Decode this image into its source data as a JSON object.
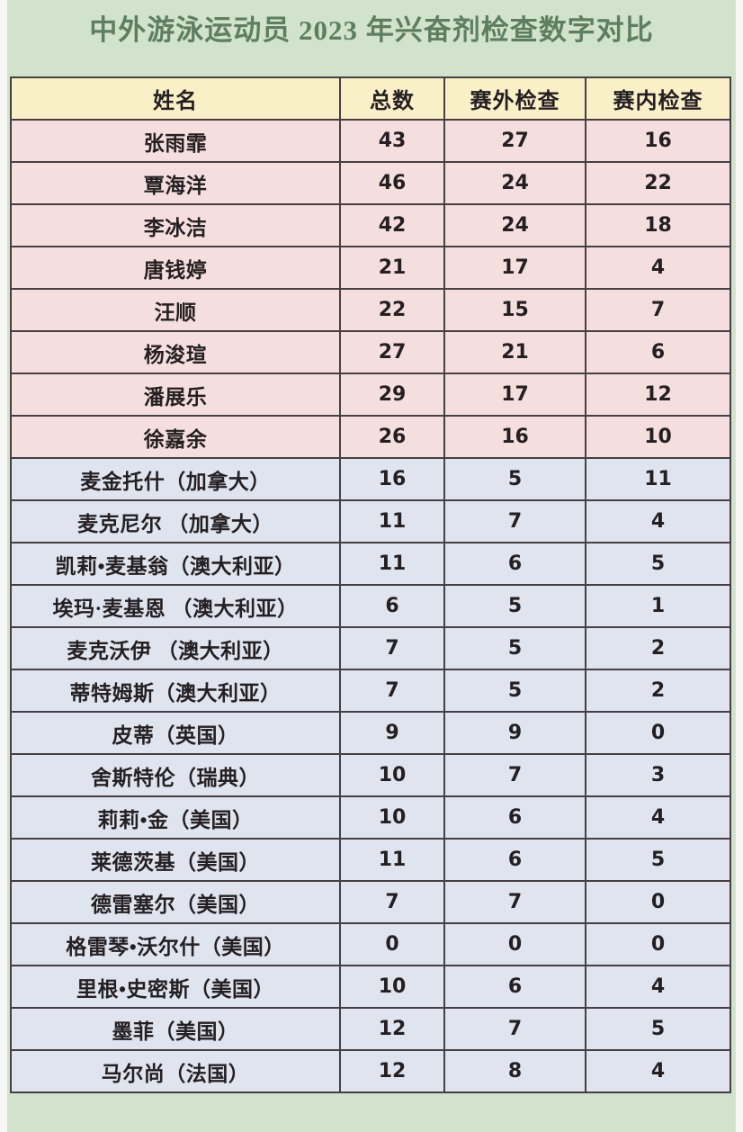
{
  "page_title": "中外游泳运动员 2023 年兴奋剂检查数字对比",
  "colors": {
    "outer_bg": "#f7f7f5",
    "panel_green": "#d2e3cd",
    "title_color": "#5e7e60",
    "header_bg": "#faf0c7",
    "chinese_row_bg": "#f5dede",
    "foreign_row_bg": "#dfe4ee",
    "border_color": "#463f43",
    "text_color": "#241f22"
  },
  "chart_data": {
    "type": "table",
    "title": "中外游泳运动员 2023 年兴奋剂检查数字对比",
    "columns": [
      "姓名",
      "总数",
      "赛外检查",
      "赛内检查"
    ],
    "chinese_row_count": 8,
    "rows": [
      [
        "张雨霏",
        43,
        27,
        16
      ],
      [
        "覃海洋",
        46,
        24,
        22
      ],
      [
        "李冰洁",
        42,
        24,
        18
      ],
      [
        "唐钱婷",
        21,
        17,
        4
      ],
      [
        "汪顺",
        22,
        15,
        7
      ],
      [
        "杨浚瑄",
        27,
        21,
        6
      ],
      [
        "潘展乐",
        29,
        17,
        12
      ],
      [
        "徐嘉余",
        26,
        16,
        10
      ],
      [
        "麦金托什（加拿大）",
        16,
        5,
        11
      ],
      [
        "麦克尼尔 （加拿大）",
        11,
        7,
        4
      ],
      [
        "凯莉•麦基翁（澳大利亚）",
        11,
        6,
        5
      ],
      [
        "埃玛·麦基恩 （澳大利亚）",
        6,
        5,
        1
      ],
      [
        "麦克沃伊 （澳大利亚）",
        7,
        5,
        2
      ],
      [
        "蒂特姆斯（澳大利亚）",
        7,
        5,
        2
      ],
      [
        "皮蒂（英国）",
        9,
        9,
        0
      ],
      [
        "舍斯特伦（瑞典）",
        10,
        7,
        3
      ],
      [
        "莉莉•金（美国）",
        10,
        6,
        4
      ],
      [
        "莱德茨基（美国）",
        11,
        6,
        5
      ],
      [
        "德雷塞尔（美国）",
        7,
        7,
        0
      ],
      [
        "格雷琴•沃尔什（美国）",
        0,
        0,
        0
      ],
      [
        "里根•史密斯（美国）",
        10,
        6,
        4
      ],
      [
        "墨菲（美国）",
        12,
        7,
        5
      ],
      [
        "马尔尚（法国）",
        12,
        8,
        4
      ]
    ],
    "row_group_legend": {
      "chinese": "pink rows (rows 1-8)",
      "foreign": "blue rows (rows 9-23)"
    }
  }
}
